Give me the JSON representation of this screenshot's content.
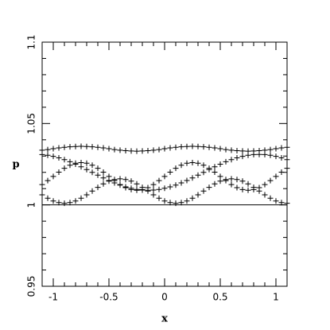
{
  "chart_data": {
    "type": "scatter",
    "xlabel": "x",
    "ylabel": "p",
    "xlim": [
      -1.1,
      1.1
    ],
    "ylim": [
      0.95,
      1.1
    ],
    "xticks": [
      -1,
      -0.5,
      0,
      0.5,
      1
    ],
    "yticks": [
      0.95,
      1,
      1.05,
      1.1
    ],
    "xminorticks": [
      -1.1,
      -0.9,
      -0.8,
      -0.7,
      -0.6,
      -0.4,
      -0.3,
      -0.2,
      -0.1,
      0.1,
      0.2,
      0.3,
      0.4,
      0.6,
      0.7,
      0.8,
      0.9
    ],
    "yminorticks": [
      0.96,
      0.97,
      0.98,
      0.99,
      1.01,
      1.02,
      1.03,
      1.04,
      1.06,
      1.07,
      1.08,
      1.09
    ],
    "hline": 1,
    "x": [
      -1.1,
      -1.05,
      -1,
      -0.95,
      -0.9,
      -0.85,
      -0.8,
      -0.75,
      -0.7,
      -0.65,
      -0.6,
      -0.55,
      -0.5,
      -0.45,
      -0.4,
      -0.35,
      -0.3,
      -0.25,
      -0.2,
      -0.15,
      -0.1,
      -0.05,
      0,
      0.05,
      0.1,
      0.15,
      0.2,
      0.25,
      0.3,
      0.35,
      0.4,
      0.45,
      0.5,
      0.55,
      0.6,
      0.65,
      0.7,
      0.75,
      0.8,
      0.85,
      0.9,
      0.95,
      1,
      1.05,
      1.1
    ],
    "series": [
      {
        "color": "#000000",
        "values": [
          1.0336,
          1.034,
          1.0345,
          1.035,
          1.0354,
          1.0357,
          1.0359,
          1.036,
          1.0359,
          1.0357,
          1.0354,
          1.035,
          1.0345,
          1.034,
          1.0336,
          1.0333,
          1.0331,
          1.033,
          1.0331,
          1.0333,
          1.0336,
          1.034,
          1.0345,
          1.035,
          1.0354,
          1.0357,
          1.0359,
          1.036,
          1.0359,
          1.0357,
          1.0354,
          1.035,
          1.0345,
          1.034,
          1.0336,
          1.0333,
          1.0331,
          1.033,
          1.0331,
          1.0333,
          1.0336,
          1.034,
          1.0345,
          1.035,
          1.0354
        ]
      },
      {
        "color": "#000000",
        "values": [
          1.0062,
          1.0041,
          1.0024,
          1.0014,
          1.001,
          1.0014,
          1.0024,
          1.0041,
          1.0062,
          1.0085,
          1.0108,
          1.0129,
          1.0146,
          1.0156,
          1.016,
          1.0156,
          1.0146,
          1.0129,
          1.0108,
          1.0085,
          1.0062,
          1.0041,
          1.0024,
          1.0014,
          1.001,
          1.0014,
          1.0024,
          1.0041,
          1.0062,
          1.0085,
          1.0108,
          1.0129,
          1.0146,
          1.0156,
          1.016,
          1.0156,
          1.0146,
          1.0129,
          1.0108,
          1.0085,
          1.0062,
          1.0041,
          1.0024,
          1.0014,
          1.001
        ]
      },
      {
        "color": "#000000",
        "values": [
          1.0125,
          1.0149,
          1.0175,
          1.0201,
          1.0225,
          1.0244,
          1.0256,
          1.026,
          1.0256,
          1.0244,
          1.0225,
          1.0201,
          1.0175,
          1.0149,
          1.0125,
          1.0106,
          1.0094,
          1.009,
          1.0094,
          1.0106,
          1.0125,
          1.0149,
          1.0175,
          1.0201,
          1.0225,
          1.0244,
          1.0256,
          1.026,
          1.0256,
          1.0244,
          1.0225,
          1.0201,
          1.0175,
          1.0149,
          1.0125,
          1.0106,
          1.0094,
          1.009,
          1.0094,
          1.0106,
          1.0125,
          1.0149,
          1.0175,
          1.0201,
          1.0225
        ]
      },
      {
        "color": "#000000",
        "values": [
          1.0309,
          1.0305,
          1.0298,
          1.0289,
          1.0278,
          1.0265,
          1.025,
          1.0234,
          1.0217,
          1.02,
          1.0183,
          1.0166,
          1.015,
          1.0135,
          1.0122,
          1.0111,
          1.0102,
          1.0095,
          1.0091,
          1.009,
          1.0091,
          1.0095,
          1.0102,
          1.0111,
          1.0122,
          1.0135,
          1.015,
          1.0166,
          1.0183,
          1.02,
          1.0217,
          1.0234,
          1.025,
          1.0265,
          1.0278,
          1.0289,
          1.0298,
          1.0305,
          1.0309,
          1.031,
          1.0309,
          1.0305,
          1.0298,
          1.0289,
          1.0278
        ]
      }
    ]
  }
}
